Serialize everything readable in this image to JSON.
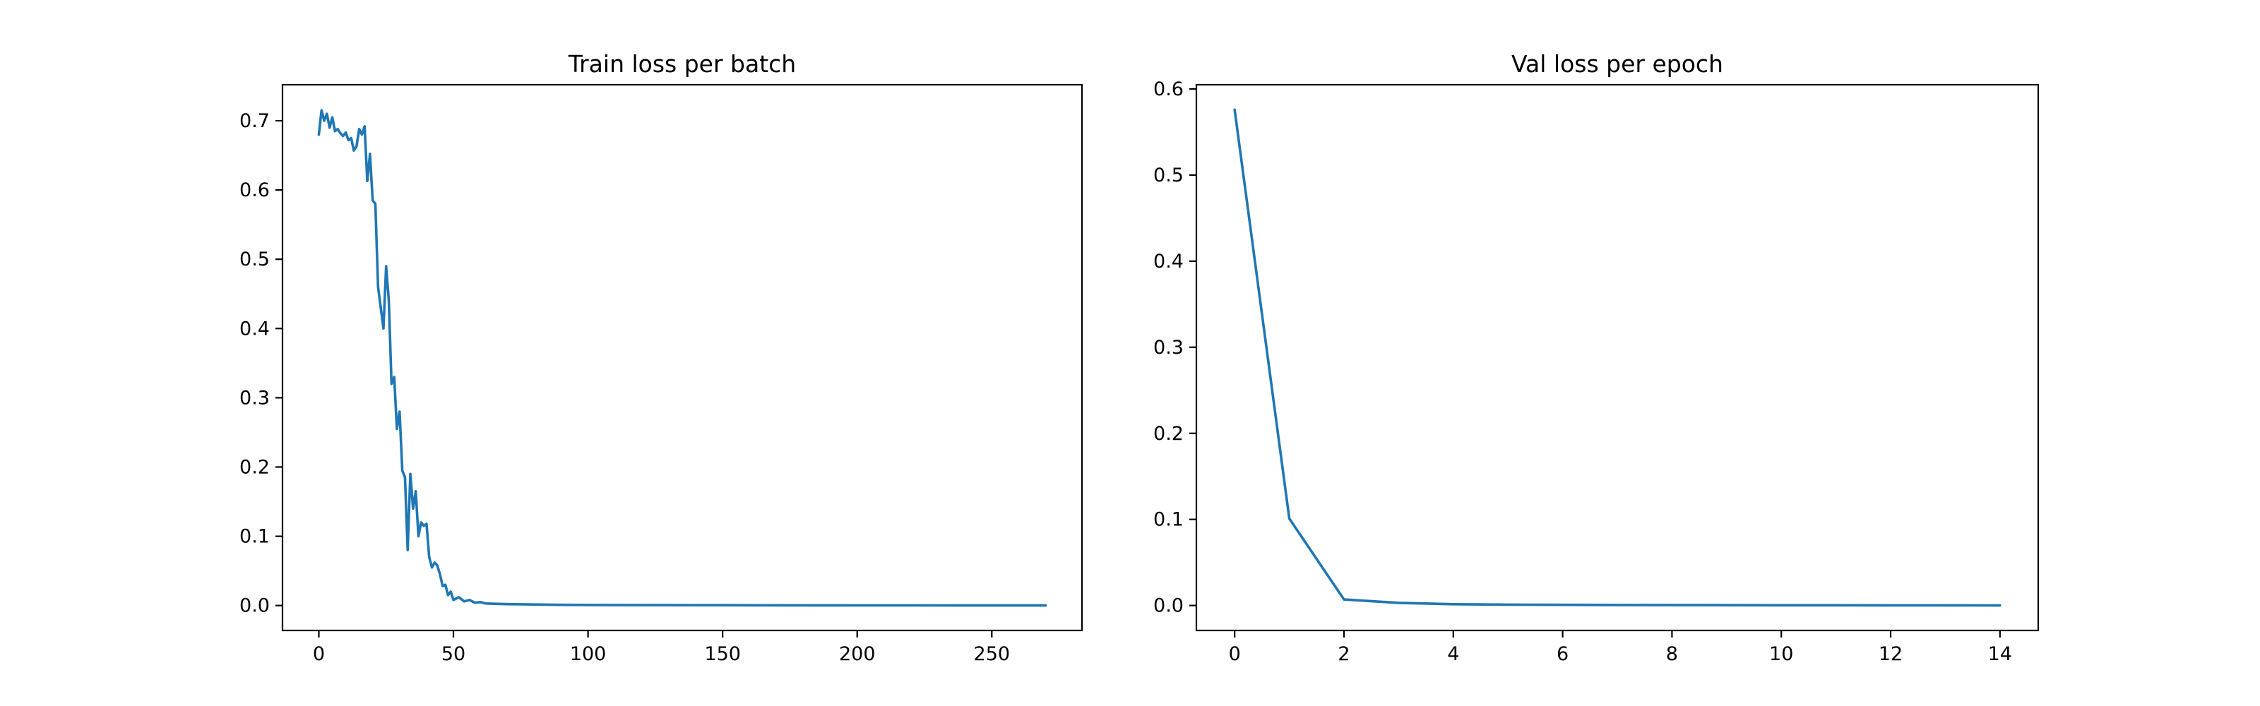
{
  "chart_data": [
    {
      "type": "line",
      "title": "Train loss per batch",
      "xlabel": "",
      "ylabel": "",
      "xlim": [
        -13.5,
        283.5
      ],
      "ylim": [
        -0.036,
        0.752
      ],
      "xticks": [
        0,
        50,
        100,
        150,
        200,
        250
      ],
      "yticks": [
        0.0,
        0.1,
        0.2,
        0.3,
        0.4,
        0.5,
        0.6,
        0.7
      ],
      "ytick_decimals": 1,
      "grid": false,
      "color": "#1f77b4",
      "series": [
        {
          "x": [
            0,
            1,
            2,
            3,
            4,
            5,
            6,
            7,
            8,
            9,
            10,
            11,
            12,
            13,
            14,
            15,
            16,
            17,
            18,
            19,
            20,
            21,
            22,
            23,
            24,
            25,
            26,
            27,
            28,
            29,
            30,
            31,
            32,
            33,
            34,
            35,
            36,
            37,
            38,
            39,
            40,
            41,
            42,
            43,
            44,
            45,
            46,
            47,
            48,
            49,
            50,
            52,
            54,
            56,
            58,
            60,
            62,
            65,
            70,
            80,
            90,
            100,
            120,
            140,
            160,
            180,
            200,
            220,
            240,
            260,
            270
          ],
          "y": [
            0.68,
            0.715,
            0.7,
            0.71,
            0.69,
            0.705,
            0.685,
            0.688,
            0.682,
            0.678,
            0.683,
            0.672,
            0.675,
            0.657,
            0.663,
            0.688,
            0.68,
            0.692,
            0.613,
            0.652,
            0.585,
            0.58,
            0.46,
            0.43,
            0.4,
            0.49,
            0.44,
            0.32,
            0.33,
            0.255,
            0.28,
            0.195,
            0.185,
            0.08,
            0.19,
            0.14,
            0.165,
            0.1,
            0.12,
            0.115,
            0.118,
            0.07,
            0.055,
            0.062,
            0.058,
            0.045,
            0.028,
            0.03,
            0.015,
            0.02,
            0.008,
            0.012,
            0.006,
            0.008,
            0.004,
            0.005,
            0.003,
            0.0025,
            0.002,
            0.0015,
            0.001,
            0.0008,
            0.0006,
            0.0005,
            0.0004,
            0.0003,
            0.0002,
            0.0002,
            0.0001,
            0.0001,
            0.0001
          ]
        }
      ]
    },
    {
      "type": "line",
      "title": "Val loss per epoch",
      "xlabel": "",
      "ylabel": "",
      "xlim": [
        -0.7,
        14.7
      ],
      "ylim": [
        -0.029,
        0.605
      ],
      "xticks": [
        0,
        2,
        4,
        6,
        8,
        10,
        12,
        14
      ],
      "yticks": [
        0.0,
        0.1,
        0.2,
        0.3,
        0.4,
        0.5,
        0.6
      ],
      "ytick_decimals": 1,
      "grid": false,
      "color": "#1f77b4",
      "series": [
        {
          "x": [
            0,
            1,
            2,
            3,
            4,
            5,
            6,
            7,
            8,
            9,
            10,
            11,
            12,
            13,
            14
          ],
          "y": [
            0.576,
            0.101,
            0.007,
            0.003,
            0.0015,
            0.001,
            0.0008,
            0.0006,
            0.0005,
            0.0004,
            0.0003,
            0.00025,
            0.0002,
            0.00015,
            0.0001
          ]
        }
      ]
    }
  ]
}
